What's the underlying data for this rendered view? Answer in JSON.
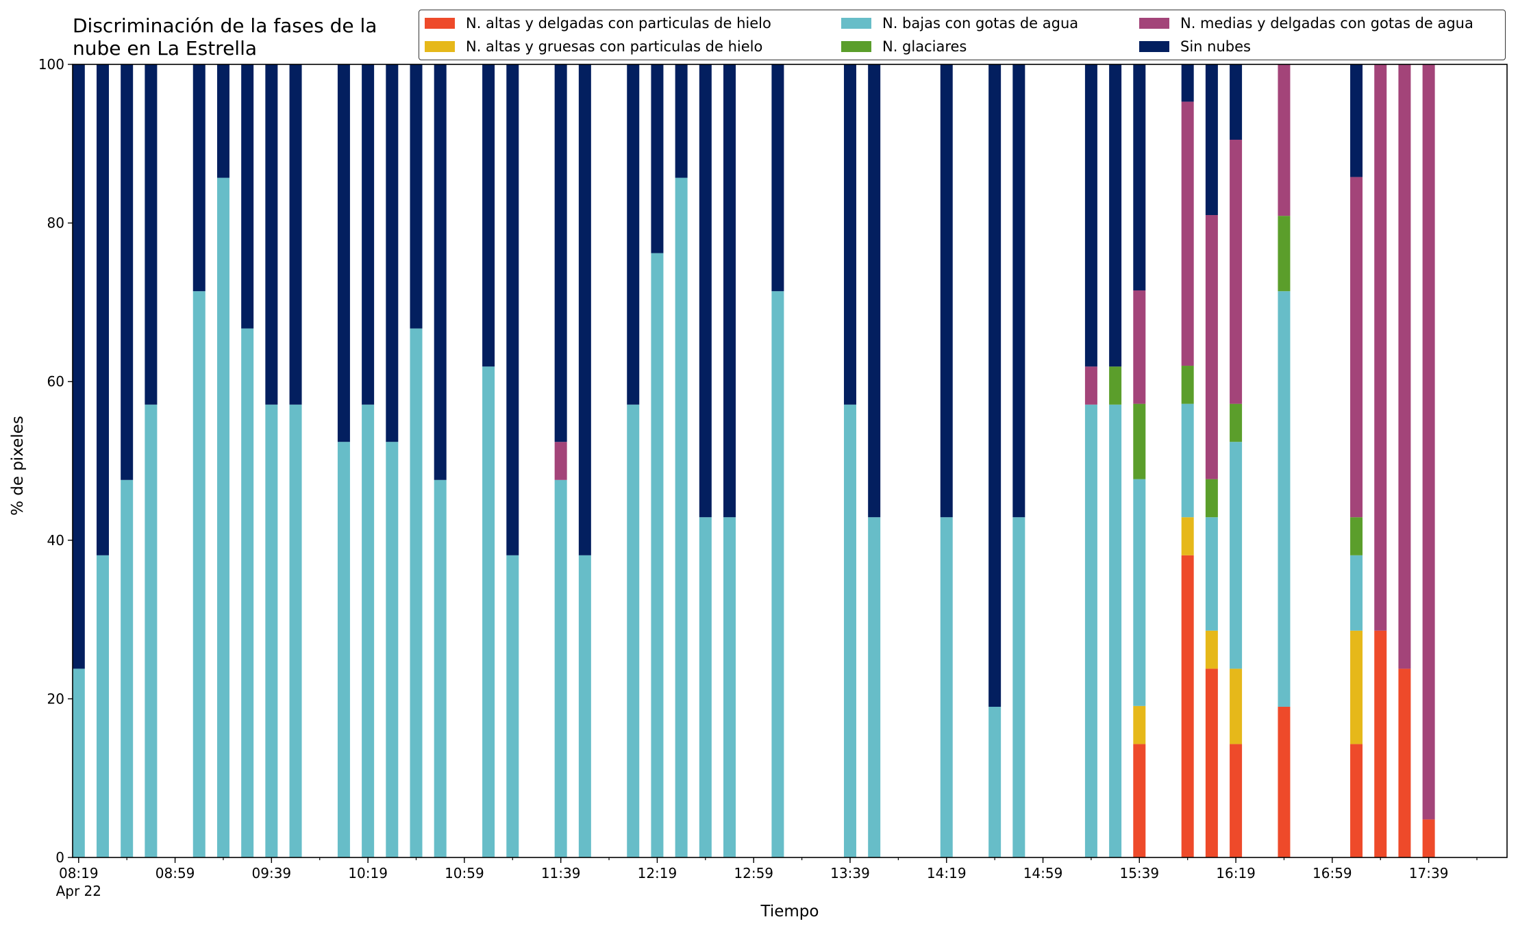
{
  "title_lines": [
    "Discriminación de la fases de la",
    "nube en La Estrella"
  ],
  "colors": {
    "hielo_delgadas": "#ee4a2a",
    "hielo_gruesas": "#e6b81a",
    "gotas_bajas": "#67bdc8",
    "glaciares": "#5b9e2b",
    "gotas_medias": "#a34479",
    "sin_nubes": "#031f5f"
  },
  "legend": [
    {
      "label": "N. altas y delgadas con particulas de hielo",
      "color": "#ee4a2a"
    },
    {
      "label": "N. altas y gruesas con particulas de hielo",
      "color": "#e6b81a"
    },
    {
      "label": "N. bajas con gotas de agua",
      "color": "#67bdc8"
    },
    {
      "label": "N. glaciares",
      "color": "#5b9e2b"
    },
    {
      "label": "N. medias y delgadas con gotas de agua",
      "color": "#a34479"
    },
    {
      "label": "Sin nubes",
      "color": "#031f5f"
    }
  ],
  "chart_data": {
    "type": "bar",
    "stacked": true,
    "title": "Discriminación de la fases de la nube en La Estrella",
    "xlabel": "Tiempo",
    "ylabel": "% de pixeles",
    "ylim": [
      0,
      100
    ],
    "yticks": [
      0,
      20,
      40,
      60,
      80,
      100
    ],
    "legend_position": "top-right",
    "x_interval_minutes": 10,
    "x_start": "08:19",
    "x_end": "18:09",
    "xticks": [
      {
        "label": "08:19",
        "sublabel": "Apr 22",
        "time": "08:19"
      },
      {
        "label": "08:59",
        "time": "08:59"
      },
      {
        "label": "09:39",
        "time": "09:39"
      },
      {
        "label": "10:19",
        "time": "10:19"
      },
      {
        "label": "10:59",
        "time": "10:59"
      },
      {
        "label": "11:39",
        "time": "11:39"
      },
      {
        "label": "12:19",
        "time": "12:19"
      },
      {
        "label": "12:59",
        "time": "12:59"
      },
      {
        "label": "13:39",
        "time": "13:39"
      },
      {
        "label": "14:19",
        "time": "14:19"
      },
      {
        "label": "14:59",
        "time": "14:59"
      },
      {
        "label": "15:39",
        "time": "15:39"
      },
      {
        "label": "16:19",
        "time": "16:19"
      },
      {
        "label": "16:59",
        "time": "16:59"
      },
      {
        "label": "17:39",
        "time": "17:39"
      }
    ],
    "series_order": [
      "hielo_delgadas",
      "hielo_gruesas",
      "gotas_bajas",
      "glaciares",
      "gotas_medias",
      "sin_nubes"
    ],
    "series_names": {
      "hielo_delgadas": "N. altas y delgadas con particulas de hielo",
      "hielo_gruesas": "N. altas y gruesas con particulas de hielo",
      "gotas_bajas": "N. bajas con gotas de agua",
      "glaciares": "N. glaciares",
      "gotas_medias": "N. medias y delgadas con gotas de agua",
      "sin_nubes": "Sin nubes"
    },
    "bars": [
      {
        "time": "08:19",
        "values": [
          0,
          0,
          23.8,
          0,
          0,
          76.2
        ]
      },
      {
        "time": "08:29",
        "values": [
          0,
          0,
          38.1,
          0,
          0,
          61.9
        ]
      },
      {
        "time": "08:39",
        "values": [
          0,
          0,
          47.6,
          0,
          0,
          52.4
        ]
      },
      {
        "time": "08:49",
        "values": [
          0,
          0,
          57.1,
          0,
          0,
          42.9
        ]
      },
      {
        "time": "09:09",
        "values": [
          0,
          0,
          71.4,
          0,
          0,
          28.6
        ]
      },
      {
        "time": "09:19",
        "values": [
          0,
          0,
          85.7,
          0,
          0,
          14.3
        ]
      },
      {
        "time": "09:29",
        "values": [
          0,
          0,
          66.7,
          0,
          0,
          33.3
        ]
      },
      {
        "time": "09:39",
        "values": [
          0,
          0,
          57.1,
          0,
          0,
          42.9
        ]
      },
      {
        "time": "09:49",
        "values": [
          0,
          0,
          57.1,
          0,
          0,
          42.9
        ]
      },
      {
        "time": "10:09",
        "values": [
          0,
          0,
          52.4,
          0,
          0,
          47.6
        ]
      },
      {
        "time": "10:19",
        "values": [
          0,
          0,
          57.1,
          0,
          0,
          42.9
        ]
      },
      {
        "time": "10:29",
        "values": [
          0,
          0,
          52.4,
          0,
          0,
          47.6
        ]
      },
      {
        "time": "10:39",
        "values": [
          0,
          0,
          66.7,
          0,
          0,
          33.3
        ]
      },
      {
        "time": "10:49",
        "values": [
          0,
          0,
          47.6,
          0,
          0,
          52.4
        ]
      },
      {
        "time": "11:09",
        "values": [
          0,
          0,
          61.9,
          0,
          0,
          38.1
        ]
      },
      {
        "time": "11:19",
        "values": [
          0,
          0,
          38.1,
          0,
          0,
          61.9
        ]
      },
      {
        "time": "11:39",
        "values": [
          0,
          0,
          47.6,
          0,
          4.8,
          47.6
        ]
      },
      {
        "time": "11:49",
        "values": [
          0,
          0,
          38.1,
          0,
          0,
          61.9
        ]
      },
      {
        "time": "12:09",
        "values": [
          0,
          0,
          57.1,
          0,
          0,
          42.9
        ]
      },
      {
        "time": "12:19",
        "values": [
          0,
          0,
          76.2,
          0,
          0,
          23.8
        ]
      },
      {
        "time": "12:29",
        "values": [
          0,
          0,
          85.7,
          0,
          0,
          14.3
        ]
      },
      {
        "time": "12:39",
        "values": [
          0,
          0,
          42.9,
          0,
          0,
          57.1
        ]
      },
      {
        "time": "12:49",
        "values": [
          0,
          0,
          42.9,
          0,
          0,
          57.1
        ]
      },
      {
        "time": "13:09",
        "values": [
          0,
          0,
          71.4,
          0,
          0,
          28.6
        ]
      },
      {
        "time": "13:39",
        "values": [
          0,
          0,
          57.1,
          0,
          0,
          42.9
        ]
      },
      {
        "time": "13:49",
        "values": [
          0,
          0,
          42.9,
          0,
          0,
          57.1
        ]
      },
      {
        "time": "14:19",
        "values": [
          0,
          0,
          42.9,
          0,
          0,
          57.1
        ]
      },
      {
        "time": "14:39",
        "values": [
          0,
          0,
          19.0,
          0,
          0,
          81.0
        ]
      },
      {
        "time": "14:49",
        "values": [
          0,
          0,
          42.9,
          0,
          0,
          57.1
        ]
      },
      {
        "time": "15:19",
        "values": [
          0,
          0,
          57.1,
          0,
          4.8,
          38.1
        ]
      },
      {
        "time": "15:29",
        "values": [
          0,
          0,
          57.1,
          4.8,
          0,
          38.1
        ]
      },
      {
        "time": "15:39",
        "values": [
          14.3,
          4.8,
          28.6,
          9.5,
          14.3,
          28.5
        ]
      },
      {
        "time": "15:59",
        "values": [
          38.1,
          4.8,
          14.3,
          4.8,
          33.3,
          4.7
        ]
      },
      {
        "time": "16:09",
        "values": [
          23.8,
          4.8,
          14.3,
          4.8,
          33.3,
          19.0
        ]
      },
      {
        "time": "16:19",
        "values": [
          14.3,
          9.5,
          28.6,
          4.8,
          33.3,
          9.5
        ]
      },
      {
        "time": "16:39",
        "values": [
          19.0,
          0,
          52.4,
          9.5,
          19.1,
          0
        ]
      },
      {
        "time": "17:09",
        "values": [
          14.3,
          14.3,
          9.5,
          4.8,
          42.9,
          14.2
        ]
      },
      {
        "time": "17:19",
        "values": [
          28.6,
          0,
          0,
          0,
          71.4,
          0
        ]
      },
      {
        "time": "17:29",
        "values": [
          23.8,
          0,
          0,
          0,
          76.2,
          0
        ]
      },
      {
        "time": "17:39",
        "values": [
          4.8,
          0,
          0,
          0,
          95.2,
          0
        ]
      }
    ]
  }
}
